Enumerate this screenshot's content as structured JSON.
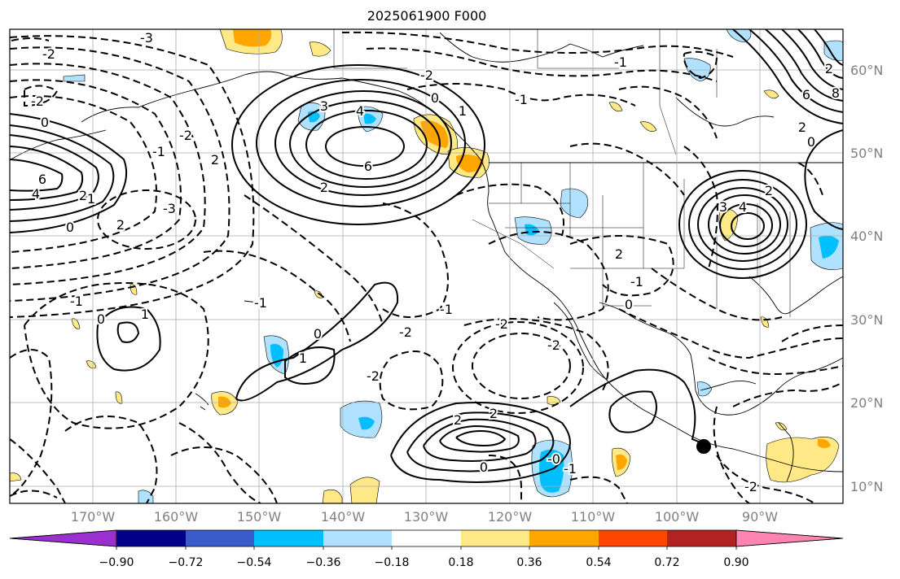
{
  "title": "2025061900 F000",
  "latitude_labels": [
    "60°N",
    "50°N",
    "40°N",
    "30°N",
    "20°N",
    "10°N"
  ],
  "longitude_labels": [
    "170°W",
    "160°W",
    "150°W",
    "140°W",
    "130°W",
    "120°W",
    "110°W",
    "100°W",
    "90°W"
  ],
  "contour_labels": [
    "-3",
    "-2",
    "-2",
    "-1",
    "0",
    "1",
    "2",
    "2",
    "3",
    "4",
    "6",
    "6",
    "4",
    "2",
    "0",
    "-2",
    "-3",
    "-1",
    "0",
    "1",
    "2",
    "-1",
    "0",
    "1",
    "-2",
    "-2",
    "2",
    "-1",
    "-2",
    "0",
    "-1",
    "-2",
    "-1",
    "0",
    "2",
    "2",
    "-2",
    "-1",
    "0",
    "1",
    "3",
    "2",
    "4",
    "2",
    "8",
    "6",
    "2",
    "0",
    "-0",
    "-1",
    "-2"
  ],
  "colorbar": {
    "tick_labels": [
      "−0.90",
      "−0.72",
      "−0.54",
      "−0.36",
      "−0.18",
      "0.18",
      "0.36",
      "0.54",
      "0.72",
      "0.90"
    ],
    "colors": [
      "#9b30d0",
      "#00008b",
      "#3a5bcc",
      "#00bfff",
      "#b0e2ff",
      "#ffffff",
      "#ffe987",
      "#ffa500",
      "#ff4500",
      "#b22222",
      "#ff85b0"
    ]
  },
  "fill_colors": {
    "light_blue": "#b0e2ff",
    "blue": "#00bfff",
    "light_yellow": "#ffe987",
    "orange": "#ffa500"
  },
  "marker": "black-dot"
}
